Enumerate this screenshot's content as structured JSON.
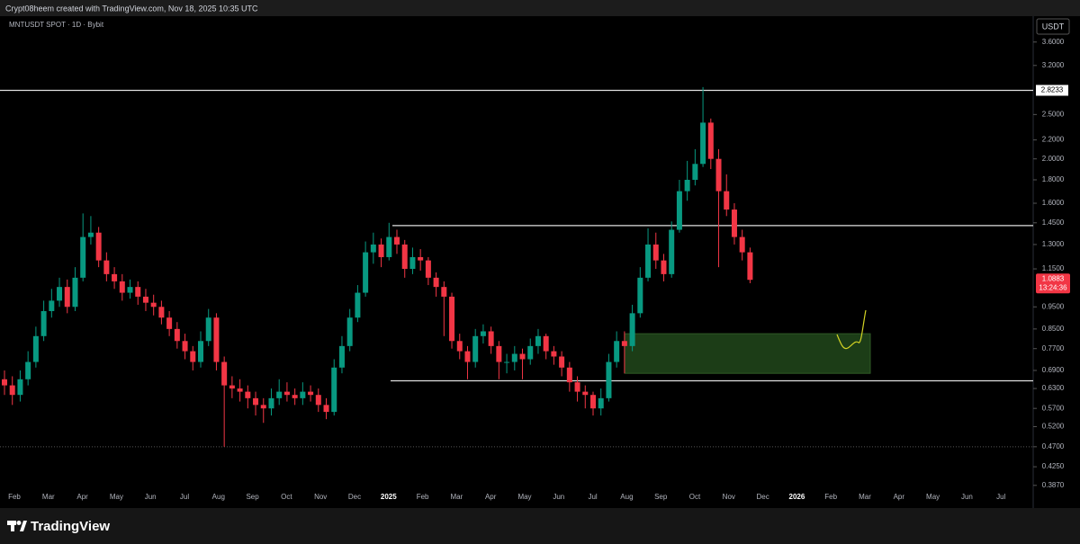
{
  "header": "Crypt08heem created with TradingView.com, Nov 18, 2025 10:35 UTC",
  "footer": "TradingView",
  "chart_data": {
    "type": "candlestick",
    "title": "MNTUSDT SPOT · 1D · Bybit",
    "currency": "USDT",
    "log_scale": true,
    "up_color": "#089981",
    "down_color": "#f23645",
    "x_axis_labels": [
      "Feb",
      "Mar",
      "Apr",
      "May",
      "Jun",
      "Jul",
      "Aug",
      "Sep",
      "Oct",
      "Nov",
      "Dec",
      "2025",
      "Feb",
      "Mar",
      "Apr",
      "May",
      "Jun",
      "Jul",
      "Aug",
      "Sep",
      "Oct",
      "Nov",
      "Dec",
      "2026",
      "Feb",
      "Mar",
      "Apr",
      "May",
      "Jun",
      "Jul"
    ],
    "open": [
      0.66,
      0.64,
      0.61,
      0.66,
      0.72,
      0.82,
      0.93,
      0.98,
      1.05,
      0.95,
      1.1,
      1.35,
      1.38,
      1.2,
      1.12,
      1.08,
      1.02,
      1.05,
      1.0,
      0.97,
      0.95,
      0.9,
      0.85,
      0.8,
      0.76,
      0.72,
      0.8,
      0.9,
      0.72,
      0.64,
      0.63,
      0.62,
      0.6,
      0.58,
      0.57,
      0.6,
      0.62,
      0.61,
      0.6,
      0.62,
      0.61,
      0.58,
      0.56,
      0.7,
      0.78,
      0.9,
      1.02,
      1.25,
      1.3,
      1.22,
      1.35,
      1.3,
      1.15,
      1.22,
      1.2,
      1.1,
      1.05,
      1.0,
      0.8,
      0.76,
      0.72,
      0.82,
      0.84,
      0.78,
      0.72,
      0.72,
      0.75,
      0.73,
      0.78,
      0.82,
      0.76,
      0.74,
      0.7,
      0.65,
      0.62,
      0.61,
      0.57,
      0.6,
      0.72,
      0.8,
      0.78,
      0.92,
      1.1,
      1.3,
      1.2,
      1.12,
      1.4,
      1.7,
      1.8,
      1.95,
      2.4,
      2.0,
      1.7,
      1.55,
      1.35,
      1.25
    ],
    "high": [
      0.69,
      0.67,
      0.69,
      0.76,
      0.86,
      0.98,
      1.04,
      1.1,
      1.09,
      1.16,
      1.52,
      1.5,
      1.42,
      1.25,
      1.16,
      1.12,
      1.09,
      1.08,
      1.04,
      1.01,
      0.98,
      0.93,
      0.88,
      0.83,
      0.78,
      0.84,
      0.94,
      0.92,
      0.74,
      0.67,
      0.66,
      0.64,
      0.62,
      0.6,
      0.63,
      0.66,
      0.65,
      0.63,
      0.65,
      0.64,
      0.63,
      0.6,
      0.73,
      0.82,
      0.94,
      1.06,
      1.32,
      1.38,
      1.34,
      1.45,
      1.4,
      1.33,
      1.28,
      1.27,
      1.22,
      1.13,
      1.08,
      1.02,
      0.83,
      0.78,
      0.85,
      0.87,
      0.86,
      0.8,
      0.75,
      0.78,
      0.77,
      0.81,
      0.85,
      0.83,
      0.78,
      0.76,
      0.72,
      0.67,
      0.64,
      0.62,
      0.63,
      0.75,
      0.84,
      0.84,
      0.96,
      1.16,
      1.41,
      1.38,
      1.24,
      1.46,
      1.8,
      1.98,
      2.1,
      2.87,
      2.45,
      2.1,
      1.85,
      1.6,
      1.4,
      1.28
    ],
    "low": [
      0.61,
      0.58,
      0.59,
      0.64,
      0.7,
      0.8,
      0.9,
      0.95,
      0.92,
      0.93,
      1.08,
      1.3,
      1.16,
      1.08,
      1.04,
      0.98,
      0.99,
      0.96,
      0.93,
      0.91,
      0.87,
      0.82,
      0.77,
      0.73,
      0.69,
      0.7,
      0.78,
      0.69,
      0.47,
      0.6,
      0.59,
      0.57,
      0.55,
      0.53,
      0.55,
      0.58,
      0.59,
      0.58,
      0.58,
      0.59,
      0.56,
      0.54,
      0.55,
      0.68,
      0.76,
      0.88,
      1.0,
      1.18,
      1.16,
      1.2,
      1.24,
      1.1,
      1.12,
      1.14,
      1.06,
      1.0,
      0.82,
      0.77,
      0.73,
      0.66,
      0.7,
      0.79,
      0.75,
      0.66,
      0.68,
      0.69,
      0.66,
      0.71,
      0.75,
      0.73,
      0.71,
      0.67,
      0.62,
      0.59,
      0.57,
      0.55,
      0.55,
      0.59,
      0.7,
      0.68,
      0.76,
      0.9,
      1.08,
      1.15,
      1.08,
      1.1,
      1.38,
      1.62,
      1.75,
      1.92,
      1.9,
      1.16,
      1.5,
      1.3,
      1.2,
      1.07
    ],
    "close": [
      0.64,
      0.61,
      0.66,
      0.72,
      0.82,
      0.93,
      0.98,
      1.05,
      0.95,
      1.1,
      1.35,
      1.38,
      1.2,
      1.12,
      1.08,
      1.02,
      1.05,
      1.0,
      0.97,
      0.95,
      0.9,
      0.85,
      0.8,
      0.76,
      0.72,
      0.8,
      0.9,
      0.72,
      0.64,
      0.63,
      0.62,
      0.6,
      0.58,
      0.57,
      0.6,
      0.62,
      0.61,
      0.6,
      0.62,
      0.61,
      0.58,
      0.56,
      0.7,
      0.78,
      0.9,
      1.02,
      1.25,
      1.3,
      1.22,
      1.35,
      1.3,
      1.15,
      1.22,
      1.2,
      1.1,
      1.05,
      1.0,
      0.8,
      0.76,
      0.72,
      0.82,
      0.84,
      0.78,
      0.72,
      0.72,
      0.75,
      0.73,
      0.78,
      0.82,
      0.76,
      0.74,
      0.7,
      0.65,
      0.62,
      0.61,
      0.57,
      0.6,
      0.72,
      0.8,
      0.78,
      0.92,
      1.1,
      1.3,
      1.2,
      1.12,
      1.4,
      1.7,
      1.8,
      1.95,
      2.4,
      2.0,
      1.7,
      1.55,
      1.35,
      1.25,
      1.0883
    ],
    "ylim": [
      0.378,
      4.1
    ],
    "yticks": [
      {
        "value": 3.6,
        "label": "3.6000"
      },
      {
        "value": 3.2,
        "label": "3.2000"
      },
      {
        "value": 2.5,
        "label": "2.5000"
      },
      {
        "value": 2.2,
        "label": "2.2000"
      },
      {
        "value": 2.0,
        "label": "2.0000"
      },
      {
        "value": 1.8,
        "label": "1.8000"
      },
      {
        "value": 1.6,
        "label": "1.6000"
      },
      {
        "value": 1.45,
        "label": "1.4500"
      },
      {
        "value": 1.3,
        "label": "1.3000"
      },
      {
        "value": 1.15,
        "label": "1.1500"
      },
      {
        "value": 0.95,
        "label": "0.9500"
      },
      {
        "value": 0.85,
        "label": "0.8500"
      },
      {
        "value": 0.77,
        "label": "0.7700"
      },
      {
        "value": 0.69,
        "label": "0.6900"
      },
      {
        "value": 0.63,
        "label": "0.6300"
      },
      {
        "value": 0.57,
        "label": "0.5700"
      },
      {
        "value": 0.52,
        "label": "0.5200"
      },
      {
        "value": 0.47,
        "label": "0.4700"
      },
      {
        "value": 0.425,
        "label": "0.4250"
      },
      {
        "value": 0.387,
        "label": "0.3870"
      }
    ],
    "price_lines": [
      {
        "value": 2.8233,
        "label": "2.8233"
      },
      {
        "value": 1.43
      },
      {
        "value": 0.655
      }
    ],
    "dotted_line": 0.47,
    "zone": [
      0.68,
      0.83
    ],
    "zone_color": "#1c3d17",
    "last_price": {
      "value": 1.0883,
      "label": "1.0883",
      "countdown": "13:24:36"
    }
  }
}
